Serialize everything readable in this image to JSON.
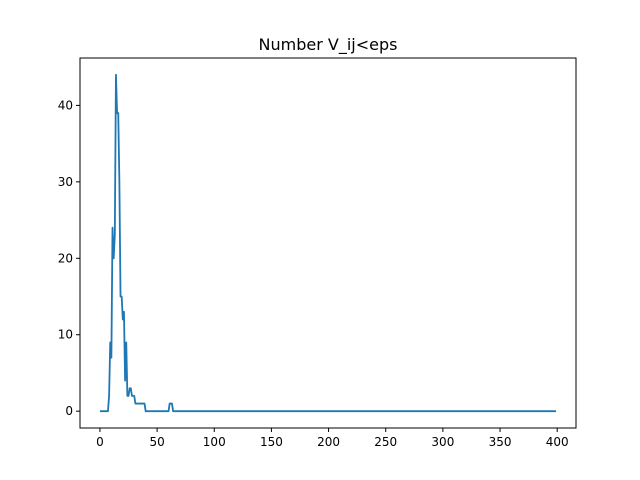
{
  "chart_data": {
    "type": "line",
    "title": "Number V_ij<eps",
    "xlabel": "",
    "ylabel": "",
    "xlim": [
      -17.45,
      416.45
    ],
    "ylim": [
      -2.2,
      46.2
    ],
    "xticks": [
      0,
      50,
      100,
      150,
      200,
      250,
      300,
      350,
      400
    ],
    "yticks": [
      0,
      10,
      20,
      30,
      40
    ],
    "grid": false,
    "line_color": "#1f77b4",
    "series": [
      {
        "x": [
          0,
          7,
          8,
          9,
          10,
          11,
          12,
          13,
          14,
          15,
          16,
          17,
          18,
          19,
          20,
          21,
          22,
          23,
          24,
          25,
          26,
          27,
          28,
          29,
          30,
          31,
          32,
          33,
          34,
          35,
          36,
          37,
          38,
          39,
          40,
          41,
          42,
          43,
          44,
          45,
          46,
          60,
          61,
          62,
          63,
          64,
          65,
          399
        ],
        "y": [
          0,
          0,
          2,
          9,
          7,
          24,
          20,
          23,
          44,
          39,
          39,
          30,
          15,
          15,
          12,
          13,
          4,
          9,
          2,
          2,
          3,
          3,
          2,
          2,
          2,
          1,
          1,
          1,
          1,
          1,
          1,
          1,
          1,
          1,
          0,
          0,
          0,
          0,
          0,
          0,
          0,
          0,
          1,
          1,
          1,
          0,
          0,
          0
        ]
      }
    ]
  }
}
